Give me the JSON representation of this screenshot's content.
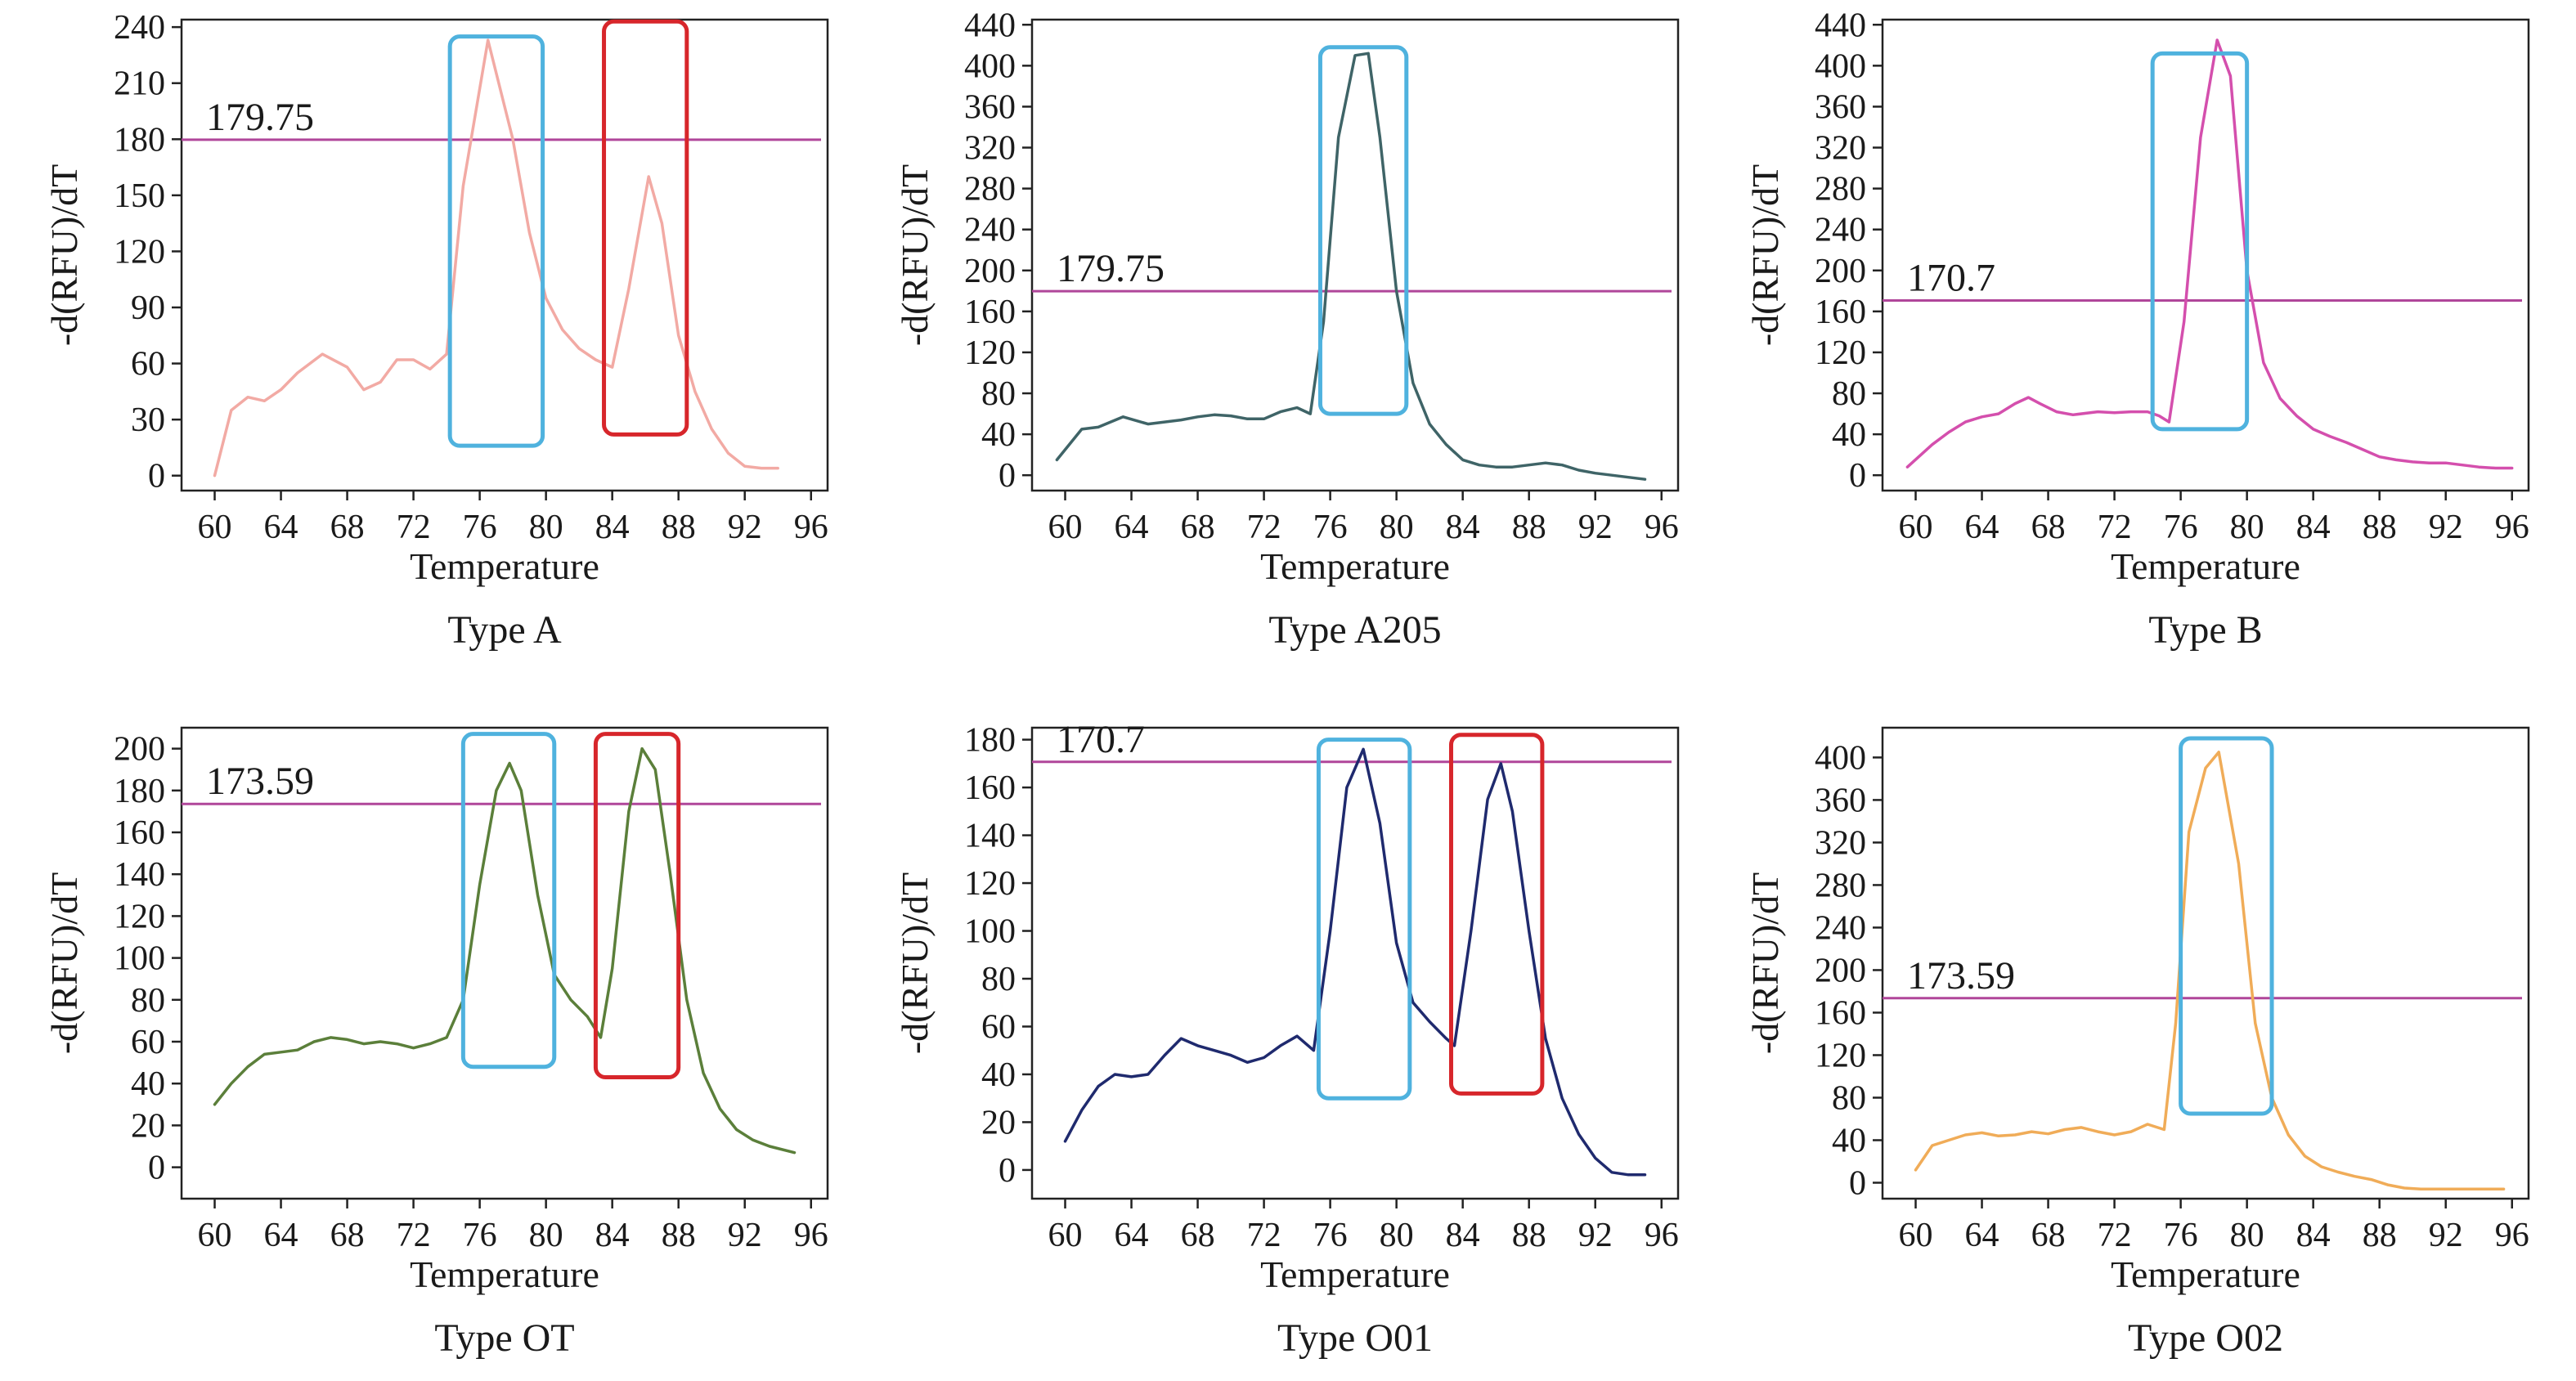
{
  "colors": {
    "threshold": "#b0469a",
    "box_primary": "#4fb2de",
    "box_secondary": "#d7262b",
    "frame": "#222222"
  },
  "chart_data": [
    {
      "type": "line",
      "caption": "Type A",
      "xlabel": "Temperature",
      "ylabel": "-d(RFU)/dT",
      "xlim": [
        58,
        97
      ],
      "ylim": [
        -8,
        244
      ],
      "xticks": [
        60,
        64,
        68,
        72,
        76,
        80,
        84,
        88,
        92,
        96
      ],
      "yticks": [
        0,
        30,
        60,
        90,
        120,
        150,
        180,
        210,
        240
      ],
      "threshold": {
        "value": 179.75,
        "label": "179.75"
      },
      "series": [
        {
          "color": "#f2aaa4",
          "x": [
            60,
            61,
            62,
            63,
            64,
            65,
            66.5,
            68,
            69,
            70,
            71,
            72,
            73,
            74,
            75,
            76.5,
            78,
            79,
            80,
            81,
            82,
            83,
            84,
            85,
            86.2,
            87,
            88,
            89,
            90,
            91,
            92,
            93,
            94
          ],
          "y": [
            0,
            35,
            42,
            40,
            46,
            55,
            65,
            58,
            46,
            50,
            62,
            62,
            57,
            65,
            155,
            233,
            180,
            130,
            95,
            78,
            68,
            62,
            58,
            100,
            160,
            135,
            75,
            45,
            25,
            12,
            5,
            4,
            4
          ]
        }
      ],
      "boxes": [
        {
          "color": "primary",
          "x": [
            74.2,
            79.8
          ],
          "y": [
            16,
            235
          ]
        },
        {
          "color": "secondary",
          "x": [
            83.5,
            88.5
          ],
          "y": [
            22,
            243
          ]
        }
      ]
    },
    {
      "type": "line",
      "caption": "Type A205",
      "xlabel": "Temperature",
      "ylabel": "-d(RFU)/dT",
      "xlim": [
        58,
        97
      ],
      "ylim": [
        -15,
        445
      ],
      "xticks": [
        60,
        64,
        68,
        72,
        76,
        80,
        84,
        88,
        92,
        96
      ],
      "yticks": [
        0,
        40,
        80,
        120,
        160,
        200,
        240,
        280,
        320,
        360,
        400,
        440
      ],
      "threshold": {
        "value": 179.75,
        "label": "179.75"
      },
      "series": [
        {
          "color": "#3f6467",
          "x": [
            59.5,
            61,
            62,
            63.5,
            65,
            66,
            67,
            68,
            69,
            70,
            71,
            72,
            73,
            74,
            74.8,
            75.6,
            76.5,
            77.5,
            78.3,
            79,
            80,
            81,
            82,
            83,
            84,
            85,
            86,
            87,
            88,
            89,
            90,
            91,
            92,
            93,
            94,
            95
          ],
          "y": [
            15,
            45,
            47,
            57,
            50,
            52,
            54,
            57,
            59,
            58,
            55,
            55,
            62,
            66,
            60,
            150,
            330,
            410,
            412,
            330,
            180,
            90,
            50,
            30,
            15,
            10,
            8,
            8,
            10,
            12,
            10,
            5,
            2,
            0,
            -2,
            -4
          ]
        }
      ],
      "boxes": [
        {
          "color": "primary",
          "x": [
            75.4,
            80.6
          ],
          "y": [
            60,
            418
          ]
        }
      ]
    },
    {
      "type": "line",
      "caption": "Type B",
      "xlabel": "Temperature",
      "ylabel": "-d(RFU)/dT",
      "xlim": [
        58,
        97
      ],
      "ylim": [
        -15,
        445
      ],
      "xticks": [
        60,
        64,
        68,
        72,
        76,
        80,
        84,
        88,
        92,
        96
      ],
      "yticks": [
        0,
        40,
        80,
        120,
        160,
        200,
        240,
        280,
        320,
        360,
        400,
        440
      ],
      "threshold": {
        "value": 170.7,
        "label": "170.7"
      },
      "series": [
        {
          "color": "#d44fad",
          "x": [
            59.5,
            61,
            62,
            63,
            64,
            65,
            66,
            66.8,
            67.5,
            68.5,
            69.5,
            71,
            72,
            73,
            74,
            74.7,
            75.3,
            76.2,
            77.2,
            78.2,
            79,
            80,
            81,
            82,
            83,
            84,
            85,
            86,
            87,
            88,
            89,
            90,
            91,
            92,
            93,
            94,
            95,
            96
          ],
          "y": [
            8,
            30,
            42,
            52,
            57,
            60,
            70,
            76,
            70,
            62,
            59,
            62,
            61,
            62,
            62,
            58,
            52,
            150,
            330,
            425,
            390,
            200,
            110,
            75,
            58,
            45,
            38,
            32,
            25,
            18,
            15,
            13,
            12,
            12,
            10,
            8,
            7,
            7
          ]
        }
      ],
      "boxes": [
        {
          "color": "primary",
          "x": [
            74.3,
            80.0
          ],
          "y": [
            45,
            412
          ]
        }
      ]
    },
    {
      "type": "line",
      "caption": "Type OT",
      "xlabel": "Temperature",
      "ylabel": "-d(RFU)/dT",
      "xlim": [
        58,
        97
      ],
      "ylim": [
        -15,
        210
      ],
      "xticks": [
        60,
        64,
        68,
        72,
        76,
        80,
        84,
        88,
        92,
        96
      ],
      "yticks": [
        0,
        20,
        40,
        60,
        80,
        100,
        120,
        140,
        160,
        180,
        200
      ],
      "threshold": {
        "value": 173.59,
        "label": "173.59"
      },
      "series": [
        {
          "color": "#5b7f3a",
          "x": [
            60,
            61,
            62,
            63,
            64,
            65,
            66,
            67,
            68,
            69,
            70,
            71,
            72,
            73,
            74,
            75,
            76,
            77,
            77.8,
            78.5,
            79.5,
            80.5,
            81.5,
            82.5,
            83.3,
            84,
            85,
            85.8,
            86.6,
            87.5,
            88.5,
            89.5,
            90.5,
            91.5,
            92.5,
            93.5,
            95
          ],
          "y": [
            30,
            40,
            48,
            54,
            55,
            56,
            60,
            62,
            61,
            59,
            60,
            59,
            57,
            59,
            62,
            80,
            135,
            180,
            193,
            180,
            130,
            92,
            80,
            72,
            62,
            95,
            170,
            200,
            190,
            140,
            80,
            45,
            28,
            18,
            13,
            10,
            7
          ]
        }
      ],
      "boxes": [
        {
          "color": "primary",
          "x": [
            75.0,
            80.5
          ],
          "y": [
            48,
            207
          ]
        },
        {
          "color": "secondary",
          "x": [
            83.0,
            88.0
          ],
          "y": [
            43,
            207
          ]
        }
      ]
    },
    {
      "type": "line",
      "caption": "Type O01",
      "xlabel": "Temperature",
      "ylabel": "-d(RFU)/dT",
      "xlim": [
        58,
        97
      ],
      "ylim": [
        -12,
        185
      ],
      "xticks": [
        60,
        64,
        68,
        72,
        76,
        80,
        84,
        88,
        92,
        96
      ],
      "yticks": [
        0,
        20,
        40,
        60,
        80,
        100,
        120,
        140,
        160,
        180
      ],
      "threshold": {
        "value": 170.7,
        "label": "170.7"
      },
      "series": [
        {
          "color": "#1f2a6e",
          "x": [
            60,
            61,
            62,
            63,
            64,
            65,
            66,
            67,
            68,
            69,
            70,
            71,
            72,
            73,
            74,
            75,
            76,
            77,
            78,
            79,
            80,
            81,
            82,
            83,
            83.5,
            84.5,
            85.5,
            86.3,
            87,
            88,
            89,
            90,
            91,
            92,
            93,
            94,
            95
          ],
          "y": [
            12,
            25,
            35,
            40,
            39,
            40,
            48,
            55,
            52,
            50,
            48,
            45,
            47,
            52,
            56,
            50,
            100,
            160,
            176,
            145,
            95,
            70,
            62,
            55,
            52,
            100,
            155,
            170,
            150,
            100,
            55,
            30,
            15,
            5,
            -1,
            -2,
            -2
          ]
        }
      ],
      "boxes": [
        {
          "color": "primary",
          "x": [
            75.3,
            80.8
          ],
          "y": [
            30,
            180
          ]
        },
        {
          "color": "secondary",
          "x": [
            83.3,
            88.8
          ],
          "y": [
            32,
            182
          ]
        }
      ]
    },
    {
      "type": "line",
      "caption": "Type O02",
      "xlabel": "Temperature",
      "ylabel": "-d(RFU)/dT",
      "xlim": [
        58,
        97
      ],
      "ylim": [
        -15,
        428
      ],
      "xticks": [
        60,
        64,
        68,
        72,
        76,
        80,
        84,
        88,
        92,
        96
      ],
      "yticks": [
        0,
        40,
        80,
        120,
        160,
        200,
        240,
        280,
        320,
        360,
        400
      ],
      "threshold": {
        "value": 173.59,
        "label": "173.59"
      },
      "series": [
        {
          "color": "#f0ac58",
          "x": [
            60,
            61,
            62,
            63,
            64,
            65,
            66,
            67,
            68,
            69,
            70,
            71,
            72,
            73,
            74,
            75,
            75.7,
            76.5,
            77.5,
            78.3,
            79.5,
            80.5,
            81.5,
            82.5,
            83.5,
            84.5,
            85.5,
            86.5,
            87.5,
            88.5,
            89.5,
            90.5,
            92,
            94,
            95.5
          ],
          "y": [
            12,
            35,
            40,
            45,
            47,
            44,
            45,
            48,
            46,
            50,
            52,
            48,
            45,
            48,
            55,
            50,
            150,
            330,
            390,
            405,
            300,
            150,
            80,
            45,
            25,
            15,
            10,
            6,
            3,
            -2,
            -5,
            -6,
            -6,
            -6,
            -6
          ]
        }
      ],
      "boxes": [
        {
          "color": "primary",
          "x": [
            76.0,
            81.5
          ],
          "y": [
            65,
            418
          ]
        }
      ]
    }
  ]
}
